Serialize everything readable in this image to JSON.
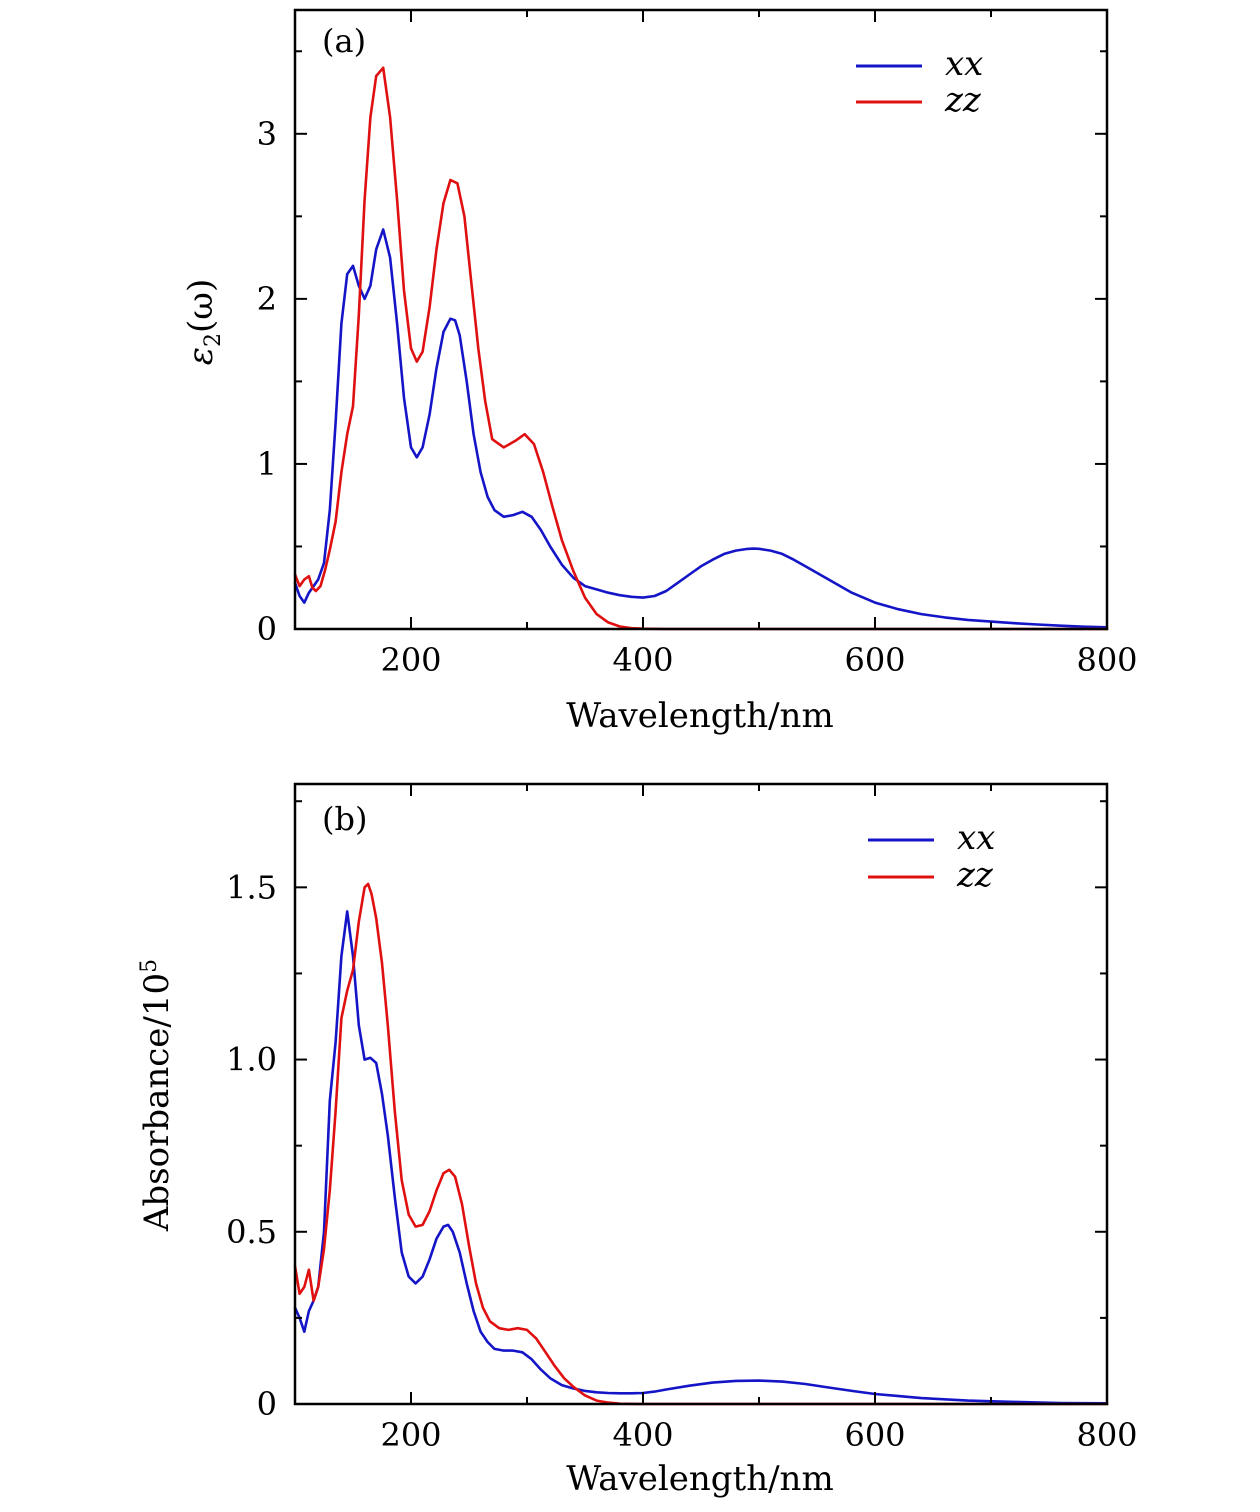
{
  "chart_data": [
    {
      "type": "line",
      "panel_label": "(a)",
      "xlabel": "Wavelength/nm",
      "ylabel": "ε2(ω)",
      "ylabel_main": "ε",
      "ylabel_sub": "2",
      "ylabel_tail": "(ω)",
      "xlim": [
        100,
        800
      ],
      "ylim": [
        0,
        3.75
      ],
      "xticks": [
        200,
        400,
        600,
        800
      ],
      "xtick_labels": [
        "200",
        "400",
        "600",
        "800"
      ],
      "yticks": [
        0,
        1,
        2,
        3
      ],
      "ytick_labels": [
        "0",
        "1",
        "2",
        "3"
      ],
      "legend_position": "top-right",
      "series": [
        {
          "name": "xx",
          "color": "#1515c8",
          "x": [
            100,
            104,
            108,
            112,
            116,
            120,
            125,
            130,
            135,
            140,
            145,
            150,
            155,
            160,
            165,
            170,
            176,
            182,
            188,
            194,
            200,
            205,
            210,
            216,
            222,
            228,
            234,
            238,
            242,
            248,
            254,
            260,
            266,
            272,
            280,
            288,
            296,
            304,
            312,
            320,
            330,
            340,
            350,
            360,
            370,
            380,
            390,
            400,
            410,
            420,
            430,
            440,
            450,
            460,
            470,
            480,
            490,
            495,
            500,
            510,
            520,
            530,
            540,
            550,
            560,
            580,
            600,
            620,
            640,
            660,
            680,
            700,
            720,
            740,
            760,
            780,
            800
          ],
          "y": [
            0.28,
            0.2,
            0.16,
            0.22,
            0.26,
            0.3,
            0.4,
            0.72,
            1.25,
            1.85,
            2.15,
            2.2,
            2.08,
            2.0,
            2.08,
            2.3,
            2.42,
            2.25,
            1.85,
            1.4,
            1.1,
            1.04,
            1.1,
            1.3,
            1.58,
            1.8,
            1.88,
            1.87,
            1.78,
            1.5,
            1.18,
            0.95,
            0.8,
            0.72,
            0.68,
            0.69,
            0.71,
            0.68,
            0.6,
            0.5,
            0.39,
            0.31,
            0.26,
            0.24,
            0.22,
            0.205,
            0.195,
            0.19,
            0.2,
            0.23,
            0.28,
            0.33,
            0.38,
            0.42,
            0.455,
            0.475,
            0.485,
            0.487,
            0.486,
            0.475,
            0.455,
            0.42,
            0.38,
            0.34,
            0.3,
            0.22,
            0.16,
            0.12,
            0.09,
            0.07,
            0.055,
            0.045,
            0.035,
            0.027,
            0.02,
            0.014,
            0.01
          ]
        },
        {
          "name": "zz",
          "color": "#e01010",
          "x": [
            100,
            104,
            108,
            112,
            115,
            118,
            122,
            126,
            130,
            135,
            140,
            145,
            150,
            155,
            160,
            165,
            170,
            176,
            182,
            188,
            194,
            200,
            205,
            210,
            216,
            222,
            228,
            234,
            240,
            246,
            252,
            258,
            264,
            270,
            280,
            290,
            298,
            306,
            314,
            322,
            330,
            340,
            350,
            360,
            370,
            380,
            390,
            400,
            420,
            450,
            500,
            600,
            700,
            800
          ],
          "y": [
            0.33,
            0.26,
            0.3,
            0.32,
            0.25,
            0.23,
            0.26,
            0.36,
            0.48,
            0.65,
            0.95,
            1.18,
            1.35,
            1.9,
            2.6,
            3.1,
            3.35,
            3.4,
            3.1,
            2.6,
            2.05,
            1.7,
            1.62,
            1.68,
            1.95,
            2.3,
            2.58,
            2.72,
            2.7,
            2.5,
            2.1,
            1.7,
            1.38,
            1.15,
            1.1,
            1.14,
            1.18,
            1.12,
            0.95,
            0.74,
            0.54,
            0.35,
            0.19,
            0.09,
            0.04,
            0.015,
            0.005,
            0.002,
            0.0,
            0.0,
            0.0,
            0.0,
            0.0,
            0.0
          ]
        }
      ]
    },
    {
      "type": "line",
      "panel_label": "(b)",
      "xlabel": "Wavelength/nm",
      "ylabel": "Absorbance/10⁵",
      "ylabel_main": "Absorbance/10",
      "ylabel_sup": "5",
      "xlim": [
        100,
        800
      ],
      "ylim": [
        0,
        1.8
      ],
      "xticks": [
        200,
        400,
        600,
        800
      ],
      "xtick_labels": [
        "200",
        "400",
        "600",
        "800"
      ],
      "yticks": [
        0,
        0.5,
        1.0,
        1.5
      ],
      "ytick_labels": [
        "0",
        "0.5",
        "1.0",
        "1.5"
      ],
      "legend_position": "top-right",
      "series": [
        {
          "name": "xx",
          "color": "#1515c8",
          "x": [
            100,
            104,
            108,
            112,
            116,
            120,
            125,
            130,
            135,
            140,
            145,
            150,
            155,
            160,
            165,
            170,
            175,
            180,
            186,
            192,
            198,
            204,
            210,
            216,
            222,
            228,
            232,
            236,
            242,
            248,
            254,
            260,
            266,
            272,
            280,
            288,
            296,
            304,
            312,
            320,
            330,
            340,
            350,
            360,
            370,
            380,
            390,
            400,
            410,
            420,
            440,
            460,
            480,
            500,
            520,
            540,
            560,
            580,
            600,
            640,
            680,
            720,
            760,
            800
          ],
          "y": [
            0.28,
            0.25,
            0.21,
            0.27,
            0.3,
            0.34,
            0.5,
            0.88,
            1.05,
            1.3,
            1.43,
            1.3,
            1.1,
            1.0,
            1.005,
            0.99,
            0.9,
            0.78,
            0.6,
            0.44,
            0.37,
            0.35,
            0.37,
            0.42,
            0.48,
            0.515,
            0.52,
            0.5,
            0.44,
            0.35,
            0.27,
            0.21,
            0.18,
            0.16,
            0.155,
            0.155,
            0.15,
            0.13,
            0.1,
            0.075,
            0.055,
            0.045,
            0.038,
            0.034,
            0.032,
            0.031,
            0.031,
            0.032,
            0.036,
            0.042,
            0.053,
            0.062,
            0.067,
            0.068,
            0.065,
            0.058,
            0.048,
            0.038,
            0.029,
            0.017,
            0.01,
            0.006,
            0.003,
            0.002
          ]
        },
        {
          "name": "zz",
          "color": "#e01010",
          "x": [
            100,
            104,
            108,
            112,
            116,
            120,
            125,
            130,
            135,
            140,
            145,
            150,
            155,
            160,
            163,
            166,
            170,
            175,
            180,
            186,
            192,
            198,
            204,
            210,
            216,
            222,
            228,
            233,
            238,
            244,
            250,
            256,
            262,
            268,
            276,
            284,
            292,
            300,
            308,
            316,
            324,
            332,
            340,
            350,
            360,
            370,
            380,
            400,
            450,
            500,
            600,
            700,
            800
          ],
          "y": [
            0.4,
            0.32,
            0.34,
            0.39,
            0.3,
            0.34,
            0.45,
            0.62,
            0.85,
            1.12,
            1.2,
            1.26,
            1.4,
            1.5,
            1.51,
            1.48,
            1.41,
            1.28,
            1.1,
            0.85,
            0.65,
            0.55,
            0.515,
            0.52,
            0.56,
            0.62,
            0.67,
            0.68,
            0.66,
            0.58,
            0.46,
            0.35,
            0.28,
            0.24,
            0.22,
            0.215,
            0.22,
            0.215,
            0.19,
            0.15,
            0.11,
            0.075,
            0.05,
            0.025,
            0.01,
            0.004,
            0.001,
            0.0,
            0.0,
            0.0,
            0.0,
            0.0,
            0.0
          ]
        }
      ]
    }
  ]
}
